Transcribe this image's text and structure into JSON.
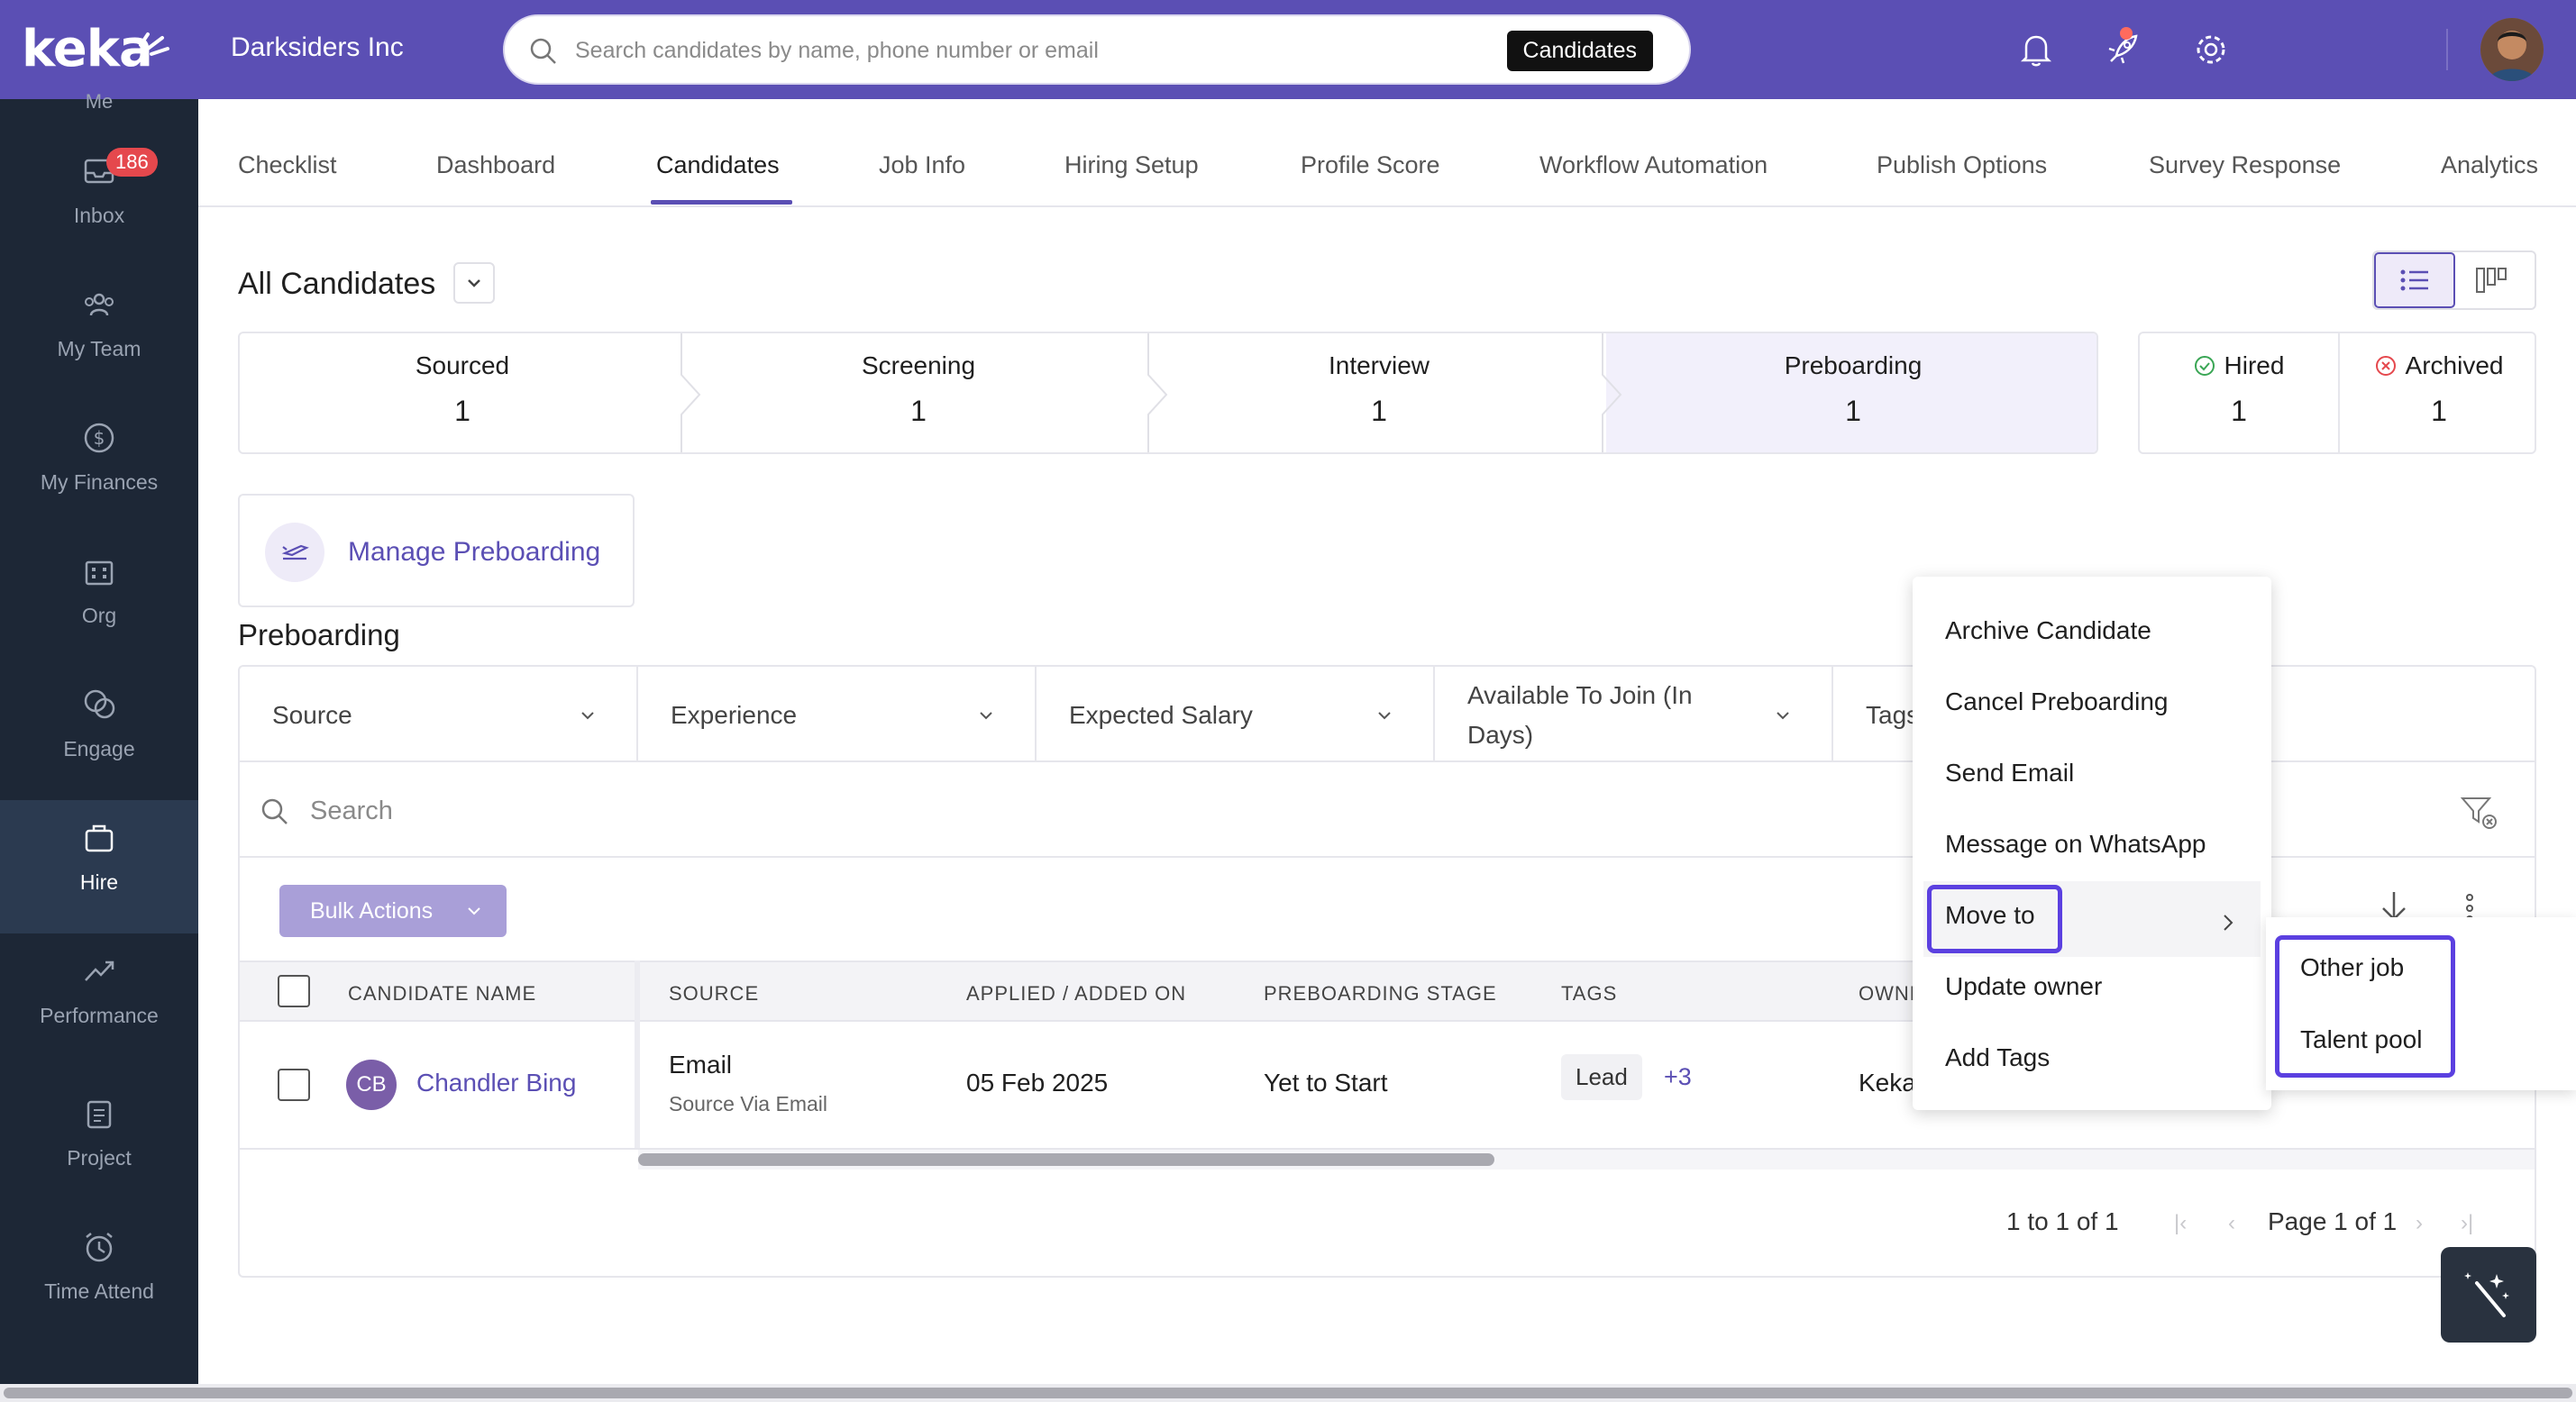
{
  "app": {
    "logo_text": "keka",
    "org_name": "Darksiders Inc"
  },
  "search": {
    "placeholder": "Search candidates by name, phone number or email",
    "scope": "Candidates"
  },
  "sidebar": {
    "me_label": "Me",
    "items": [
      {
        "label": "Inbox",
        "icon": "inbox-icon",
        "badge": "186"
      },
      {
        "label": "My Team",
        "icon": "team-icon"
      },
      {
        "label": "My Finances",
        "icon": "finances-icon"
      },
      {
        "label": "Org",
        "icon": "org-icon"
      },
      {
        "label": "Engage",
        "icon": "engage-icon"
      },
      {
        "label": "Hire",
        "icon": "hire-icon",
        "active": true
      },
      {
        "label": "Performance",
        "icon": "performance-icon"
      },
      {
        "label": "Project",
        "icon": "project-icon"
      },
      {
        "label": "Time Attend",
        "icon": "time-icon"
      }
    ]
  },
  "tabs": [
    "Checklist",
    "Dashboard",
    "Candidates",
    "Job Info",
    "Hiring Setup",
    "Profile Score",
    "Workflow Automation",
    "Publish Options",
    "Survey Response",
    "Analytics"
  ],
  "active_tab": "Candidates",
  "view": {
    "title": "All Candidates"
  },
  "stages": [
    {
      "name": "Sourced",
      "count": "1"
    },
    {
      "name": "Screening",
      "count": "1"
    },
    {
      "name": "Interview",
      "count": "1"
    },
    {
      "name": "Preboarding",
      "count": "1"
    }
  ],
  "active_stage": "Preboarding",
  "side_stats": [
    {
      "name": "Hired",
      "count": "1"
    },
    {
      "name": "Archived",
      "count": "1"
    }
  ],
  "manage": {
    "label": "Manage Preboarding"
  },
  "section_title": "Preboarding",
  "filters": [
    "Source",
    "Experience",
    "Expected Salary",
    "Available To Join (In Days)",
    "Tags"
  ],
  "table_search": {
    "placeholder": "Search"
  },
  "bulk_actions": "Bulk Actions",
  "columns": [
    "CANDIDATE NAME",
    "SOURCE",
    "APPLIED / ADDED ON",
    "PREBOARDING STAGE",
    "TAGS",
    "OWNE"
  ],
  "rows": [
    {
      "initials": "CB",
      "name": "Chandler Bing",
      "source": "Email",
      "source_sub": "Source Via Email",
      "applied_on": "05 Feb 2025",
      "stage": "Yet to Start",
      "tag": "Lead",
      "tag_more": "+3",
      "owner": "Keka"
    }
  ],
  "pagination": {
    "range": "1 to 1 of 1",
    "page": "Page 1 of 1"
  },
  "context_menu": {
    "items": [
      "Archive Candidate",
      "Cancel Preboarding",
      "Send Email",
      "Message on WhatsApp",
      "Move to",
      "Update owner",
      "Add Tags"
    ],
    "highlighted": "Move to",
    "submenu": [
      "Other job",
      "Talent pool"
    ]
  },
  "colors": {
    "brand": "#5b4fb4",
    "sidebar": "#1d2736",
    "highlight": "#5b40e0",
    "badge": "#e5484d"
  }
}
